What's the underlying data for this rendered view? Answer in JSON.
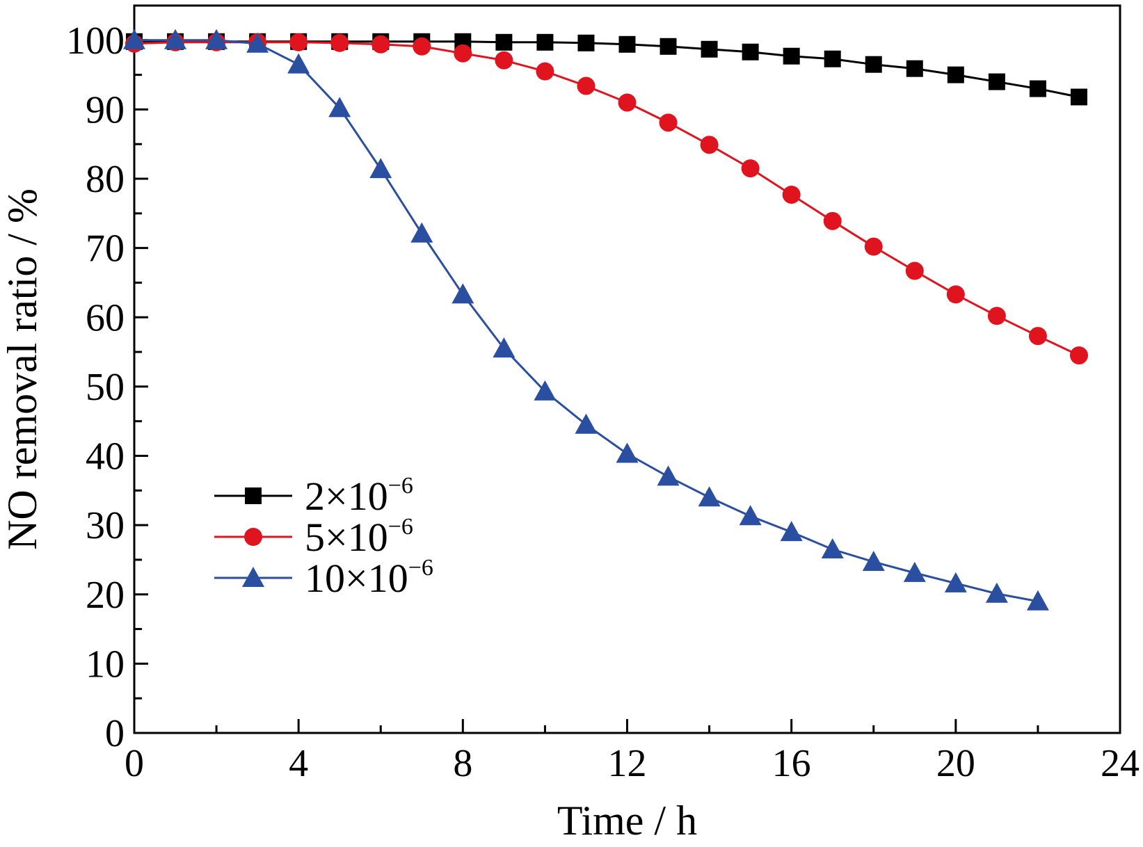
{
  "chart_data": {
    "type": "line",
    "title": "",
    "xlabel": "Time / h",
    "ylabel": "NO removal ratio / %",
    "xlim": [
      0,
      24
    ],
    "ylim": [
      0,
      105
    ],
    "xticks": [
      0,
      4,
      8,
      12,
      16,
      20,
      24
    ],
    "yticks": [
      0,
      10,
      20,
      30,
      40,
      50,
      60,
      70,
      80,
      90,
      100
    ],
    "grid": false,
    "legend_position": "lower-left",
    "series": [
      {
        "name": "2×10−6",
        "color": "#000000",
        "marker": "square",
        "x": [
          0,
          1,
          2,
          3,
          4,
          5,
          6,
          7,
          8,
          9,
          10,
          11,
          12,
          13,
          14,
          15,
          16,
          17,
          18,
          19,
          20,
          21,
          22,
          23
        ],
        "y": [
          99.8,
          99.8,
          99.8,
          99.8,
          99.8,
          99.8,
          99.8,
          99.8,
          99.8,
          99.7,
          99.7,
          99.6,
          99.4,
          99.1,
          98.7,
          98.3,
          97.7,
          97.3,
          96.5,
          95.9,
          95.0,
          94.0,
          93.0,
          91.8
        ]
      },
      {
        "name": "5×10−6",
        "color": "#e0141e",
        "marker": "circle",
        "x": [
          0,
          1,
          2,
          3,
          4,
          5,
          6,
          7,
          8,
          9,
          10,
          11,
          12,
          13,
          14,
          15,
          16,
          17,
          18,
          19,
          20,
          21,
          22,
          23
        ],
        "y": [
          99.5,
          99.7,
          99.7,
          99.7,
          99.7,
          99.6,
          99.4,
          99.1,
          98.1,
          97.1,
          95.5,
          93.4,
          91.0,
          88.1,
          84.9,
          81.5,
          77.7,
          73.9,
          70.2,
          66.7,
          63.3,
          60.2,
          57.3,
          54.5
        ]
      },
      {
        "name": "10×10−6",
        "color": "#2a4fa0",
        "marker": "triangle",
        "x": [
          0,
          1,
          2,
          3,
          4,
          5,
          6,
          7,
          8,
          9,
          10,
          11,
          12,
          13,
          14,
          15,
          16,
          17,
          18,
          19,
          20,
          21,
          22
        ],
        "y": [
          100,
          100,
          100,
          99.5,
          96.5,
          90.2,
          81.4,
          72.1,
          63.3,
          55.5,
          49.3,
          44.5,
          40.3,
          37.0,
          34.0,
          31.3,
          29.0,
          26.5,
          24.7,
          23.1,
          21.6,
          20.1,
          19.0
        ]
      }
    ]
  }
}
